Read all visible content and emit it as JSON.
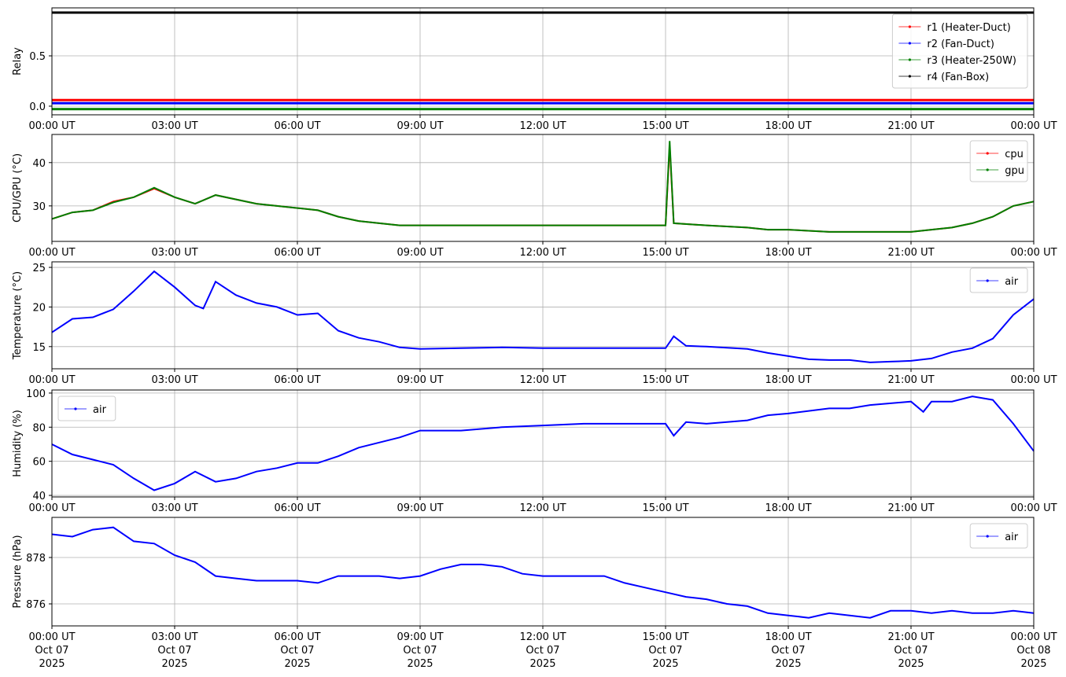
{
  "chart_data": [
    {
      "type": "line",
      "y_label": "Relay",
      "grid": true,
      "legend": "upper right",
      "xlim": [
        0,
        24
      ],
      "xticks": [
        {
          "value": 0,
          "label": "00:00 UT"
        },
        {
          "value": 3,
          "label": "03:00 UT"
        },
        {
          "value": 6,
          "label": "06:00 UT"
        },
        {
          "value": 9,
          "label": "09:00 UT"
        },
        {
          "value": 12,
          "label": "12:00 UT"
        },
        {
          "value": 15,
          "label": "15:00 UT"
        },
        {
          "value": 18,
          "label": "18:00 UT"
        },
        {
          "value": 21,
          "label": "21:00 UT"
        },
        {
          "value": 24,
          "label": "00:00 UT"
        }
      ],
      "ylim": [
        -0.086,
        0.977
      ],
      "yticks": [
        {
          "value": 0,
          "label": "0.0"
        },
        0.5
      ],
      "x": [
        0,
        24
      ],
      "series": [
        {
          "name": "r1 (Heater-Duct)",
          "color": "#ff0000",
          "values": [
            0.06,
            0.06
          ]
        },
        {
          "name": "r2 (Fan-Duct)",
          "color": "#0000ff",
          "values": [
            0.03,
            0.03
          ]
        },
        {
          "name": "r3 (Heater-250W)",
          "color": "#008000",
          "values": [
            -0.03,
            -0.03
          ]
        },
        {
          "name": "r4 (Fan-Box)",
          "color": "#000000",
          "values": [
            0.93,
            0.93
          ]
        }
      ]
    },
    {
      "type": "line",
      "y_label": "CPU/GPU (°C)",
      "grid": true,
      "legend": "upper right",
      "xlim": [
        0,
        24
      ],
      "xticks": [
        {
          "value": 0,
          "label": "00:00 UT"
        },
        {
          "value": 3,
          "label": "03:00 UT"
        },
        {
          "value": 6,
          "label": "06:00 UT"
        },
        {
          "value": 9,
          "label": "09:00 UT"
        },
        {
          "value": 12,
          "label": "12:00 UT"
        },
        {
          "value": 15,
          "label": "15:00 UT"
        },
        {
          "value": 18,
          "label": "18:00 UT"
        },
        {
          "value": 21,
          "label": "21:00 UT"
        },
        {
          "value": 24,
          "label": "00:00 UT"
        }
      ],
      "ylim": [
        21.8,
        46.5
      ],
      "yticks": [
        30,
        40
      ],
      "x": [
        0,
        0.5,
        1,
        1.5,
        2,
        2.5,
        3,
        3.5,
        4,
        4.5,
        5,
        5.5,
        6,
        6.5,
        7,
        7.5,
        8,
        8.5,
        9,
        10,
        11,
        12,
        13,
        14,
        15,
        15.1,
        15.2,
        16,
        17,
        17.5,
        18,
        19,
        20,
        21,
        21.5,
        22,
        22.5,
        23,
        23.5,
        24
      ],
      "series": [
        {
          "name": "cpu",
          "color": "#ff0000",
          "values": [
            27,
            28.5,
            29,
            31,
            32,
            34,
            32,
            30.5,
            32.5,
            31.5,
            30.5,
            30,
            29.5,
            29,
            27.5,
            26.5,
            26,
            25.5,
            25.5,
            25.5,
            25.5,
            25.5,
            25.5,
            25.5,
            25.5,
            44,
            26,
            25.5,
            25,
            24.5,
            24.5,
            24,
            24,
            24,
            24.5,
            25,
            26,
            27.5,
            30,
            31
          ]
        },
        {
          "name": "gpu",
          "color": "#008000",
          "values": [
            27,
            28.5,
            29,
            30.8,
            32,
            34.2,
            32,
            30.5,
            32.5,
            31.5,
            30.5,
            30,
            29.5,
            29,
            27.5,
            26.5,
            26,
            25.5,
            25.5,
            25.5,
            25.5,
            25.5,
            25.5,
            25.5,
            25.5,
            45,
            26,
            25.5,
            25,
            24.5,
            24.5,
            24,
            24,
            24,
            24.5,
            25,
            26,
            27.5,
            30,
            31
          ]
        }
      ]
    },
    {
      "type": "line",
      "y_label": "Temperature (°C)",
      "grid": true,
      "legend": "upper right",
      "xlim": [
        0,
        24
      ],
      "xticks": [
        {
          "value": 0,
          "label": "00:00 UT"
        },
        {
          "value": 3,
          "label": "03:00 UT"
        },
        {
          "value": 6,
          "label": "06:00 UT"
        },
        {
          "value": 9,
          "label": "09:00 UT"
        },
        {
          "value": 12,
          "label": "12:00 UT"
        },
        {
          "value": 15,
          "label": "15:00 UT"
        },
        {
          "value": 18,
          "label": "18:00 UT"
        },
        {
          "value": 21,
          "label": "21:00 UT"
        },
        {
          "value": 24,
          "label": "00:00 UT"
        }
      ],
      "ylim": [
        12.2,
        25.7
      ],
      "yticks": [
        15,
        20,
        25
      ],
      "x": [
        0,
        0.5,
        1,
        1.5,
        2,
        2.5,
        3,
        3.5,
        3.7,
        4,
        4.5,
        5,
        5.5,
        6,
        6.5,
        7,
        7.5,
        8,
        8.5,
        9,
        10,
        11,
        12,
        13,
        14,
        15,
        15.2,
        15.5,
        16,
        17,
        17.5,
        18,
        18.5,
        19,
        19.5,
        20,
        20.5,
        21,
        21.5,
        22,
        22.5,
        23,
        23.5,
        24
      ],
      "series": [
        {
          "name": "air",
          "color": "#0000ff",
          "values": [
            16.8,
            18.5,
            18.7,
            19.7,
            22,
            24.5,
            22.5,
            20.2,
            19.8,
            23.2,
            21.5,
            20.5,
            20,
            19,
            19.2,
            17,
            16.1,
            15.6,
            14.9,
            14.7,
            14.8,
            14.9,
            14.8,
            14.8,
            14.8,
            14.8,
            16.3,
            15.1,
            15,
            14.7,
            14.2,
            13.8,
            13.4,
            13.3,
            13.3,
            13,
            13.1,
            13.2,
            13.5,
            14.3,
            14.8,
            16,
            19,
            21
          ]
        }
      ]
    },
    {
      "type": "line",
      "y_label": "Humidity (%)",
      "grid": true,
      "legend": "upper left",
      "xlim": [
        0,
        24
      ],
      "xticks": [
        {
          "value": 0,
          "label": "00:00 UT"
        },
        {
          "value": 3,
          "label": "03:00 UT"
        },
        {
          "value": 6,
          "label": "06:00 UT"
        },
        {
          "value": 9,
          "label": "09:00 UT"
        },
        {
          "value": 12,
          "label": "12:00 UT"
        },
        {
          "value": 15,
          "label": "15:00 UT"
        },
        {
          "value": 18,
          "label": "18:00 UT"
        },
        {
          "value": 21,
          "label": "21:00 UT"
        },
        {
          "value": 24,
          "label": "00:00 UT"
        }
      ],
      "ylim": [
        39.1,
        101.8
      ],
      "yticks": [
        40,
        60,
        80,
        100
      ],
      "x": [
        0,
        0.5,
        1,
        1.5,
        2,
        2.5,
        3,
        3.5,
        4,
        4.5,
        5,
        5.5,
        6,
        6.5,
        7,
        7.5,
        8,
        8.5,
        9,
        10,
        11,
        12,
        13,
        14,
        15,
        15.2,
        15.5,
        16,
        17,
        17.5,
        18,
        19,
        19.5,
        20,
        21,
        21.3,
        21.5,
        22,
        22.5,
        23,
        23.5,
        24
      ],
      "series": [
        {
          "name": "air",
          "color": "#0000ff",
          "values": [
            70,
            64,
            61,
            58,
            50,
            43,
            47,
            54,
            48,
            50,
            54,
            56,
            59,
            59,
            63,
            68,
            71,
            74,
            78,
            78,
            80,
            81,
            82,
            82,
            82,
            75,
            83,
            82,
            84,
            87,
            88,
            91,
            91,
            93,
            95,
            89,
            95,
            95,
            98,
            96,
            82,
            66
          ]
        }
      ]
    },
    {
      "type": "line",
      "y_label": "Pressure (hPa)",
      "grid": true,
      "legend": "upper right",
      "xlim": [
        0,
        24
      ],
      "xticks": [
        {
          "value": 0,
          "label": "00:00 UT\nOct 07\n2025"
        },
        {
          "value": 3,
          "label": "03:00 UT\nOct 07\n2025"
        },
        {
          "value": 6,
          "label": "06:00 UT\nOct 07\n2025"
        },
        {
          "value": 9,
          "label": "09:00 UT\nOct 07\n2025"
        },
        {
          "value": 12,
          "label": "12:00 UT\nOct 07\n2025"
        },
        {
          "value": 15,
          "label": "15:00 UT\nOct 07\n2025"
        },
        {
          "value": 18,
          "label": "18:00 UT\nOct 07\n2025"
        },
        {
          "value": 21,
          "label": "21:00 UT\nOct 07\n2025"
        },
        {
          "value": 24,
          "label": "00:00 UT\nOct 08\n2025"
        }
      ],
      "ylim": [
        875.05,
        879.73
      ],
      "yticks": [
        876,
        878
      ],
      "x": [
        0,
        0.5,
        1,
        1.5,
        2,
        2.5,
        3,
        3.5,
        4,
        4.5,
        5,
        5.5,
        6,
        6.5,
        7,
        7.5,
        8,
        8.5,
        9,
        9.5,
        10,
        10.5,
        11,
        11.5,
        12,
        12.5,
        13,
        13.5,
        14,
        14.5,
        15,
        15.5,
        16,
        16.5,
        17,
        17.5,
        18,
        18.5,
        19,
        19.5,
        20,
        20.5,
        21,
        21.5,
        22,
        22.5,
        23,
        23.5,
        24
      ],
      "series": [
        {
          "name": "air",
          "color": "#0000ff",
          "values": [
            879,
            878.9,
            879.2,
            879.3,
            878.7,
            878.6,
            878.1,
            877.8,
            877.2,
            877.1,
            877,
            877,
            877,
            876.9,
            877.2,
            877.2,
            877.2,
            877.1,
            877.2,
            877.5,
            877.7,
            877.7,
            877.6,
            877.3,
            877.2,
            877.2,
            877.2,
            877.2,
            876.9,
            876.7,
            876.5,
            876.3,
            876.2,
            876,
            875.9,
            875.6,
            875.5,
            875.4,
            875.6,
            875.5,
            875.4,
            875.7,
            875.7,
            875.6,
            875.7,
            875.6,
            875.6,
            875.7,
            875.6
          ]
        }
      ]
    }
  ]
}
